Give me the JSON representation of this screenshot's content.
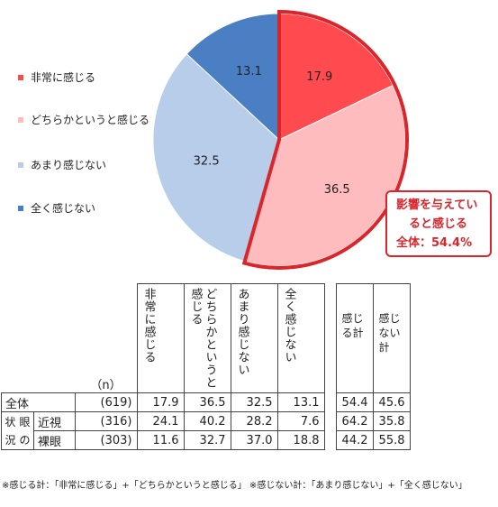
{
  "chart_data": {
    "type": "pie",
    "segments": [
      {
        "name": "非常に感じる",
        "value": 17.9,
        "color": "#ff4a4f"
      },
      {
        "name": "どちらかというと感じる",
        "value": 36.5,
        "color": "#ffbcbe"
      },
      {
        "name": "あまり感じない",
        "value": 32.5,
        "color": "#b8cde9"
      },
      {
        "name": "全く感じない",
        "value": 13.1,
        "color": "#4b7fc4"
      }
    ],
    "highlight_color": "#d9262b",
    "callout": {
      "line1": "影響を与えてい",
      "line2": "ると感じる",
      "line3": "全体：54.4%"
    }
  },
  "table": {
    "n_header": "（n）",
    "headers": [
      "非常に感じる",
      "どちらかというと感じる",
      "あまり感じない",
      "全く感じない"
    ],
    "sum_headers": [
      "感じる計",
      "感じない計"
    ],
    "group_label": "状況眼の",
    "rows": [
      {
        "label": "全体",
        "n": "(619)",
        "values": [
          "17.9",
          "36.5",
          "32.5",
          "13.1"
        ],
        "sums": [
          "54.4",
          "45.6"
        ]
      },
      {
        "label": "近視",
        "n": "(316)",
        "values": [
          "24.1",
          "40.2",
          "28.2",
          "7.6"
        ],
        "sums": [
          "64.2",
          "35.8"
        ]
      },
      {
        "label": "裸眼",
        "n": "(303)",
        "values": [
          "11.6",
          "32.7",
          "37.0",
          "18.8"
        ],
        "sums": [
          "44.2",
          "55.8"
        ]
      }
    ]
  },
  "note": "※感じる計：「非常に感じる」+「どちらかというと感じる」 ※感じない計：「あまり感じない」+「全く感じない」"
}
